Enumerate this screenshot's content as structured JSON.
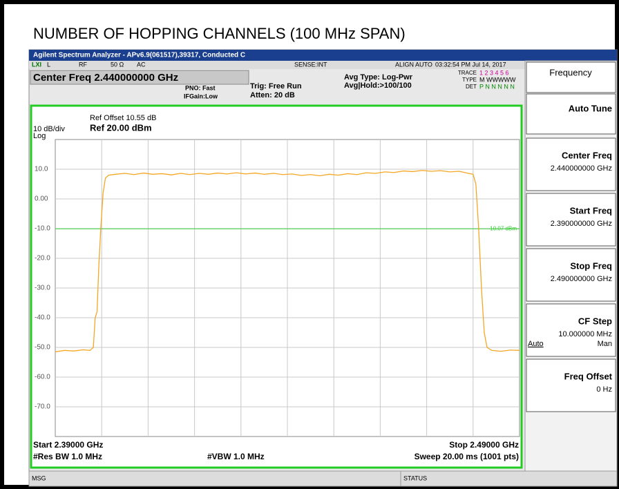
{
  "header": {
    "title": "NUMBER OF HOPPING CHANNELS (100 MHz SPAN)"
  },
  "screen": {
    "app_title": "Agilent Spectrum Analyzer - APv6.9(061517),39317, Conducted C",
    "status_row": [
      "LXI",
      "L",
      "RF",
      "50 Ω",
      "AC",
      "SENSE:INT",
      "ALIGN AUTO",
      "03:32:54 PM Jul 14, 2017"
    ],
    "center_freq": "Center Freq 2.440000000 GHz",
    "pno": "PNO: Fast",
    "ifgain": "IFGain:Low",
    "trig": "Trig: Free Run",
    "atten": "Atten: 20 dB",
    "avg_type": "Avg Type: Log-Pwr",
    "avg_hold": "Avg|Hold:>100/100",
    "trace_labels": [
      "TRACE",
      "TYPE",
      "DET"
    ],
    "trace_values": [
      "1 2 3 4 5 6",
      "M WWWWW",
      "P N N N N N"
    ],
    "scale": "10 dB/div",
    "log": "Log",
    "ref_offset": "Ref Offset 10.55 dB",
    "ref_level": "Ref 20.00 dBm",
    "start": "Start 2.39000 GHz",
    "stop": "Stop 2.49000 GHz",
    "rbw": "#Res BW 1.0 MHz",
    "vbw": "#VBW 1.0 MHz",
    "sweep": "Sweep  20.00 ms (1001 pts)",
    "msg": "MSG",
    "status": "STATUS"
  },
  "softkeys": {
    "menu": "Frequency",
    "keys": [
      {
        "label": "Auto Tune"
      },
      {
        "label": "Center Freq",
        "value": "2.440000000 GHz"
      },
      {
        "label": "Start Freq",
        "value": "2.390000000 GHz"
      },
      {
        "label": "Stop Freq",
        "value": "2.490000000 GHz"
      },
      {
        "label": "CF Step",
        "value": "10.000000 MHz",
        "options": [
          "Auto",
          "Man"
        ]
      },
      {
        "label": "Freq Offset",
        "value": "0 Hz"
      }
    ]
  },
  "chart_data": {
    "type": "line",
    "color": "#f5a623",
    "xlim": [
      2.39,
      2.49
    ],
    "ylim": [
      -80,
      20
    ],
    "yticks": [
      {
        "value": 10,
        "label": "10.0"
      },
      {
        "value": 0,
        "label": "0.00"
      },
      {
        "value": -10,
        "label": "-10.0"
      },
      {
        "value": -20,
        "label": "-20.0"
      },
      {
        "value": -30,
        "label": "-30.0"
      },
      {
        "value": -40,
        "label": "-40.0"
      },
      {
        "value": -50,
        "label": "-50.0"
      },
      {
        "value": -60,
        "label": "-60.0"
      },
      {
        "value": -70,
        "label": "-70.0"
      }
    ],
    "grid": true,
    "threshold": {
      "value": -10.07,
      "label": "-10.07 dBm"
    },
    "x": [
      2.39,
      2.392,
      2.394,
      2.396,
      2.3975,
      2.3982,
      2.3986,
      2.399,
      2.3994,
      2.3998,
      2.4003,
      2.4008,
      2.4015,
      2.403,
      2.405,
      2.407,
      2.409,
      2.411,
      2.413,
      2.415,
      2.417,
      2.419,
      2.421,
      2.423,
      2.425,
      2.427,
      2.429,
      2.431,
      2.433,
      2.435,
      2.437,
      2.439,
      2.441,
      2.443,
      2.445,
      2.447,
      2.449,
      2.451,
      2.453,
      2.455,
      2.457,
      2.459,
      2.461,
      2.463,
      2.465,
      2.467,
      2.469,
      2.471,
      2.473,
      2.475,
      2.477,
      2.479,
      2.48,
      2.4806,
      2.4812,
      2.4818,
      2.4824,
      2.483,
      2.484,
      2.486,
      2.488,
      2.49
    ],
    "values": [
      -51.5,
      -51,
      -51.2,
      -50.8,
      -51,
      -50,
      -40,
      -38,
      -22,
      -10,
      2,
      7,
      8,
      8.3,
      8.6,
      8.2,
      8.7,
      8.3,
      8.5,
      8.1,
      8.6,
      8.2,
      8.6,
      8.3,
      8.7,
      8.4,
      8.8,
      8.4,
      8.7,
      8.3,
      8.6,
      8.2,
      8.4,
      7.9,
      8.2,
      7.8,
      8.3,
      8.0,
      8.5,
      8.2,
      8.8,
      8.6,
      9.1,
      8.9,
      9.4,
      9.2,
      9.6,
      9.3,
      9.5,
      9.1,
      9.3,
      8.6,
      8.3,
      5,
      -10,
      -30,
      -45,
      -50,
      -51,
      -51.3,
      -50.9,
      -51
    ]
  }
}
